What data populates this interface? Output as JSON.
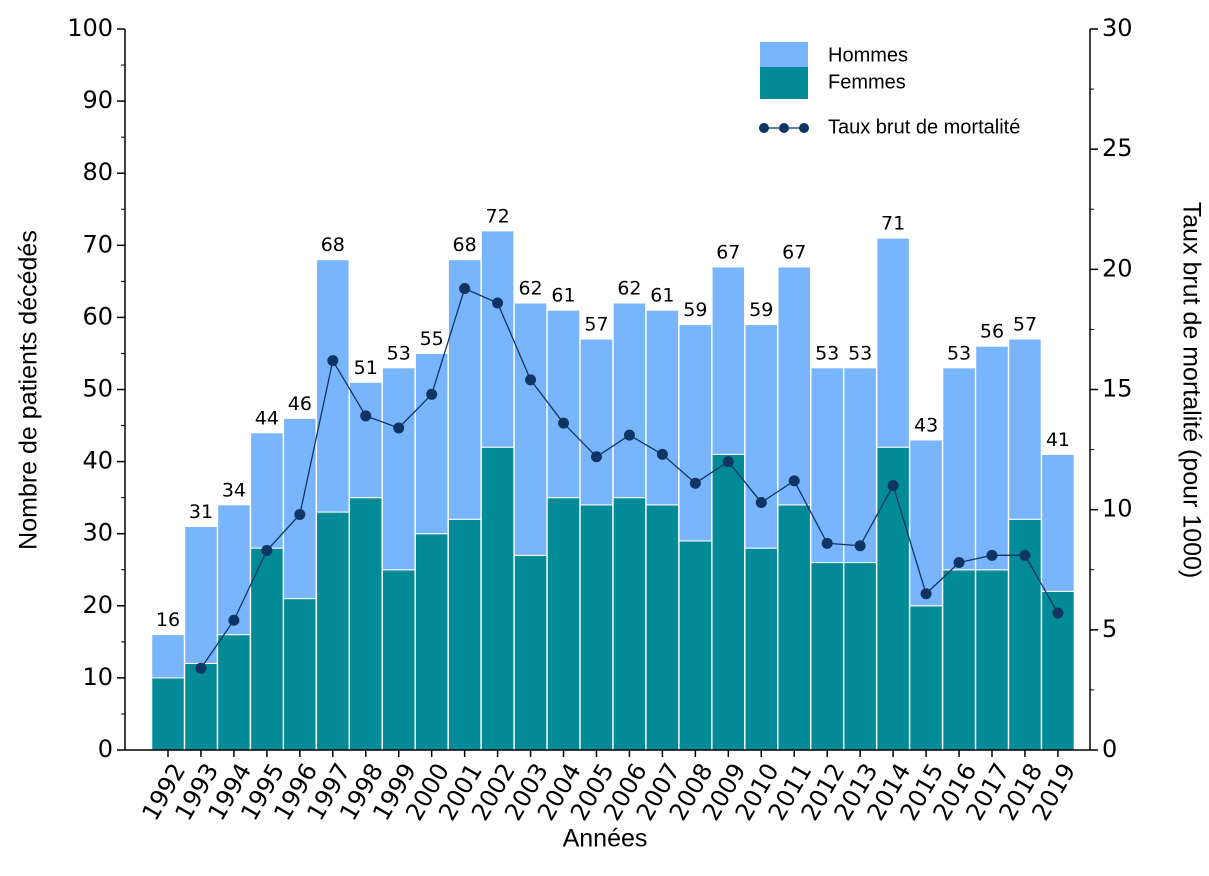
{
  "chart_data": {
    "type": "bar",
    "stacked": true,
    "x_label": "Années",
    "y_label": "Nombre de patients décédés",
    "y2_label": "Taux brut de mortalité (pour 1000)",
    "categories": [
      "1992",
      "1993",
      "1994",
      "1995",
      "1996",
      "1997",
      "1998",
      "1999",
      "2000",
      "2001",
      "2002",
      "2003",
      "2004",
      "2005",
      "2006",
      "2007",
      "2008",
      "2009",
      "2010",
      "2011",
      "2012",
      "2013",
      "2014",
      "2015",
      "2016",
      "2017",
      "2018",
      "2019"
    ],
    "series": [
      {
        "name": "Femmes",
        "color": "#028b97",
        "values": [
          10,
          12,
          16,
          28,
          21,
          33,
          35,
          25,
          30,
          32,
          42,
          27,
          35,
          34,
          35,
          34,
          29,
          41,
          28,
          34,
          26,
          26,
          42,
          20,
          25,
          25,
          32,
          22
        ]
      },
      {
        "name": "Hommes",
        "color": "#78b5fd",
        "values": [
          6,
          19,
          18,
          16,
          25,
          35,
          16,
          28,
          25,
          36,
          30,
          35,
          26,
          23,
          27,
          27,
          30,
          26,
          31,
          33,
          27,
          27,
          29,
          23,
          28,
          31,
          25,
          19
        ]
      },
      {
        "name": "Taux brut de mortalité",
        "color": "#0e3564",
        "type": "line",
        "axis": "y2",
        "values": [
          null,
          3.4,
          5.4,
          8.3,
          9.8,
          16.2,
          13.9,
          13.4,
          14.8,
          19.2,
          18.6,
          15.4,
          13.6,
          12.2,
          13.1,
          12.3,
          11.1,
          12.0,
          10.3,
          11.2,
          8.6,
          8.5,
          11.0,
          6.5,
          7.8,
          8.1,
          8.1,
          5.7
        ]
      }
    ],
    "totals": [
      16,
      31,
      34,
      44,
      46,
      68,
      51,
      53,
      55,
      68,
      72,
      62,
      61,
      57,
      62,
      61,
      59,
      67,
      59,
      67,
      53,
      53,
      71,
      43,
      53,
      56,
      57,
      41
    ],
    "ylim": [
      0,
      100
    ],
    "yticks": [
      0,
      10,
      20,
      30,
      40,
      50,
      60,
      70,
      80,
      90,
      100
    ],
    "y2lim": [
      0,
      30
    ],
    "y2ticks": [
      0,
      5,
      10,
      15,
      20,
      25,
      30
    ]
  }
}
